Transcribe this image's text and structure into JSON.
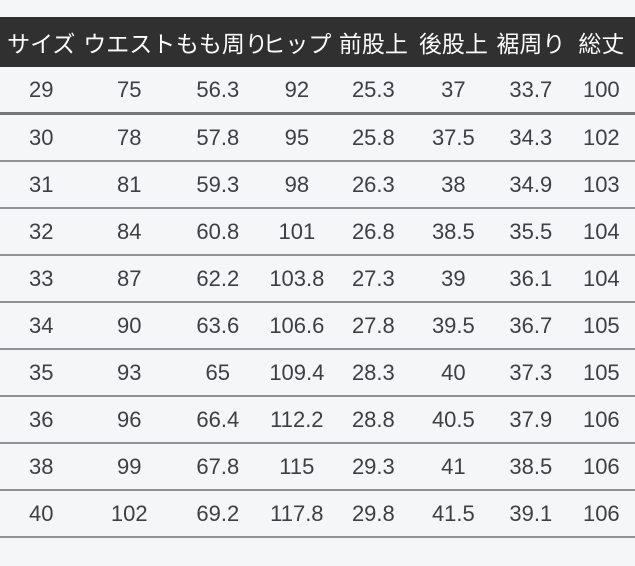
{
  "chart_data": {
    "type": "table",
    "columns": [
      "サイズ",
      "ウエスト",
      "もも周り",
      "ヒップ",
      "前股上",
      "後股上",
      "裾周り",
      "総丈"
    ],
    "rows": [
      [
        "29",
        "75",
        "56.3",
        "92",
        "25.3",
        "37",
        "33.7",
        "100"
      ],
      [
        "30",
        "78",
        "57.8",
        "95",
        "25.8",
        "37.5",
        "34.3",
        "102"
      ],
      [
        "31",
        "81",
        "59.3",
        "98",
        "26.3",
        "38",
        "34.9",
        "103"
      ],
      [
        "32",
        "84",
        "60.8",
        "101",
        "26.8",
        "38.5",
        "35.5",
        "104"
      ],
      [
        "33",
        "87",
        "62.2",
        "103.8",
        "27.3",
        "39",
        "36.1",
        "104"
      ],
      [
        "34",
        "90",
        "63.6",
        "106.6",
        "27.8",
        "39.5",
        "36.7",
        "105"
      ],
      [
        "35",
        "93",
        "65",
        "109.4",
        "28.3",
        "40",
        "37.3",
        "105"
      ],
      [
        "36",
        "96",
        "66.4",
        "112.2",
        "28.8",
        "40.5",
        "37.9",
        "106"
      ],
      [
        "38",
        "99",
        "67.8",
        "115",
        "29.3",
        "41",
        "38.5",
        "106"
      ],
      [
        "40",
        "102",
        "69.2",
        "117.8",
        "29.8",
        "41.5",
        "39.1",
        "106"
      ]
    ],
    "column_widths_percent": [
      13.0,
      14.7,
      13.2,
      11.7,
      12.4,
      12.8,
      11.6,
      10.6
    ]
  },
  "colors": {
    "page_background": "#f5f6f8",
    "header_background": "#303030",
    "header_text": "#fcfcfc",
    "body_text": "#3d3f42",
    "row_divider": "#8e9196",
    "first_row_divider": "#75787d"
  }
}
